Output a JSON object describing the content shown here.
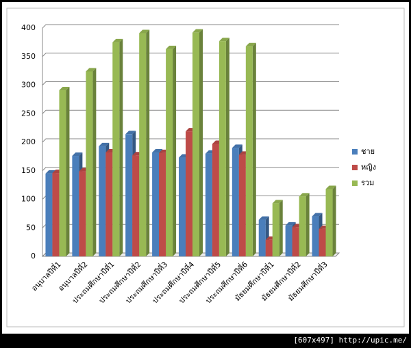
{
  "chart_data": {
    "type": "bar",
    "categories": [
      "อนุบาลปีที่1",
      "อนุบาลปีที่2",
      "ประถมศึกษาปีที่1",
      "ประถมศึกษาปีที่2",
      "ประถมศึกษาปีที่3",
      "ประถมศึกษาปีที่4",
      "ประถมศึกษาปีที่5",
      "ประถมศึกษาปีที่6",
      "มัธยมศึกษาปีที่1",
      "มัธยมศึกษาปีที่2",
      "มัธยมศึกษาปีที่3"
    ],
    "series": [
      {
        "name": "ชาย",
        "color": "#4a7ebb",
        "values": [
          145,
          176,
          193,
          214,
          182,
          173,
          180,
          190,
          64,
          54,
          70
        ]
      },
      {
        "name": "หญิง",
        "color": "#be4b48",
        "values": [
          146,
          149,
          182,
          177,
          181,
          219,
          197,
          178,
          29,
          51,
          48
        ]
      },
      {
        "name": "รวม",
        "color": "#98b954",
        "values": [
          291,
          324,
          375,
          391,
          363,
          392,
          377,
          368,
          93,
          105,
          118
        ]
      }
    ],
    "ylim": [
      0,
      400
    ],
    "yticks": [
      0,
      50,
      100,
      150,
      200,
      250,
      300,
      350,
      400
    ],
    "grid": true,
    "legend": "right"
  },
  "footer": "[607x497] http://upic.me/"
}
